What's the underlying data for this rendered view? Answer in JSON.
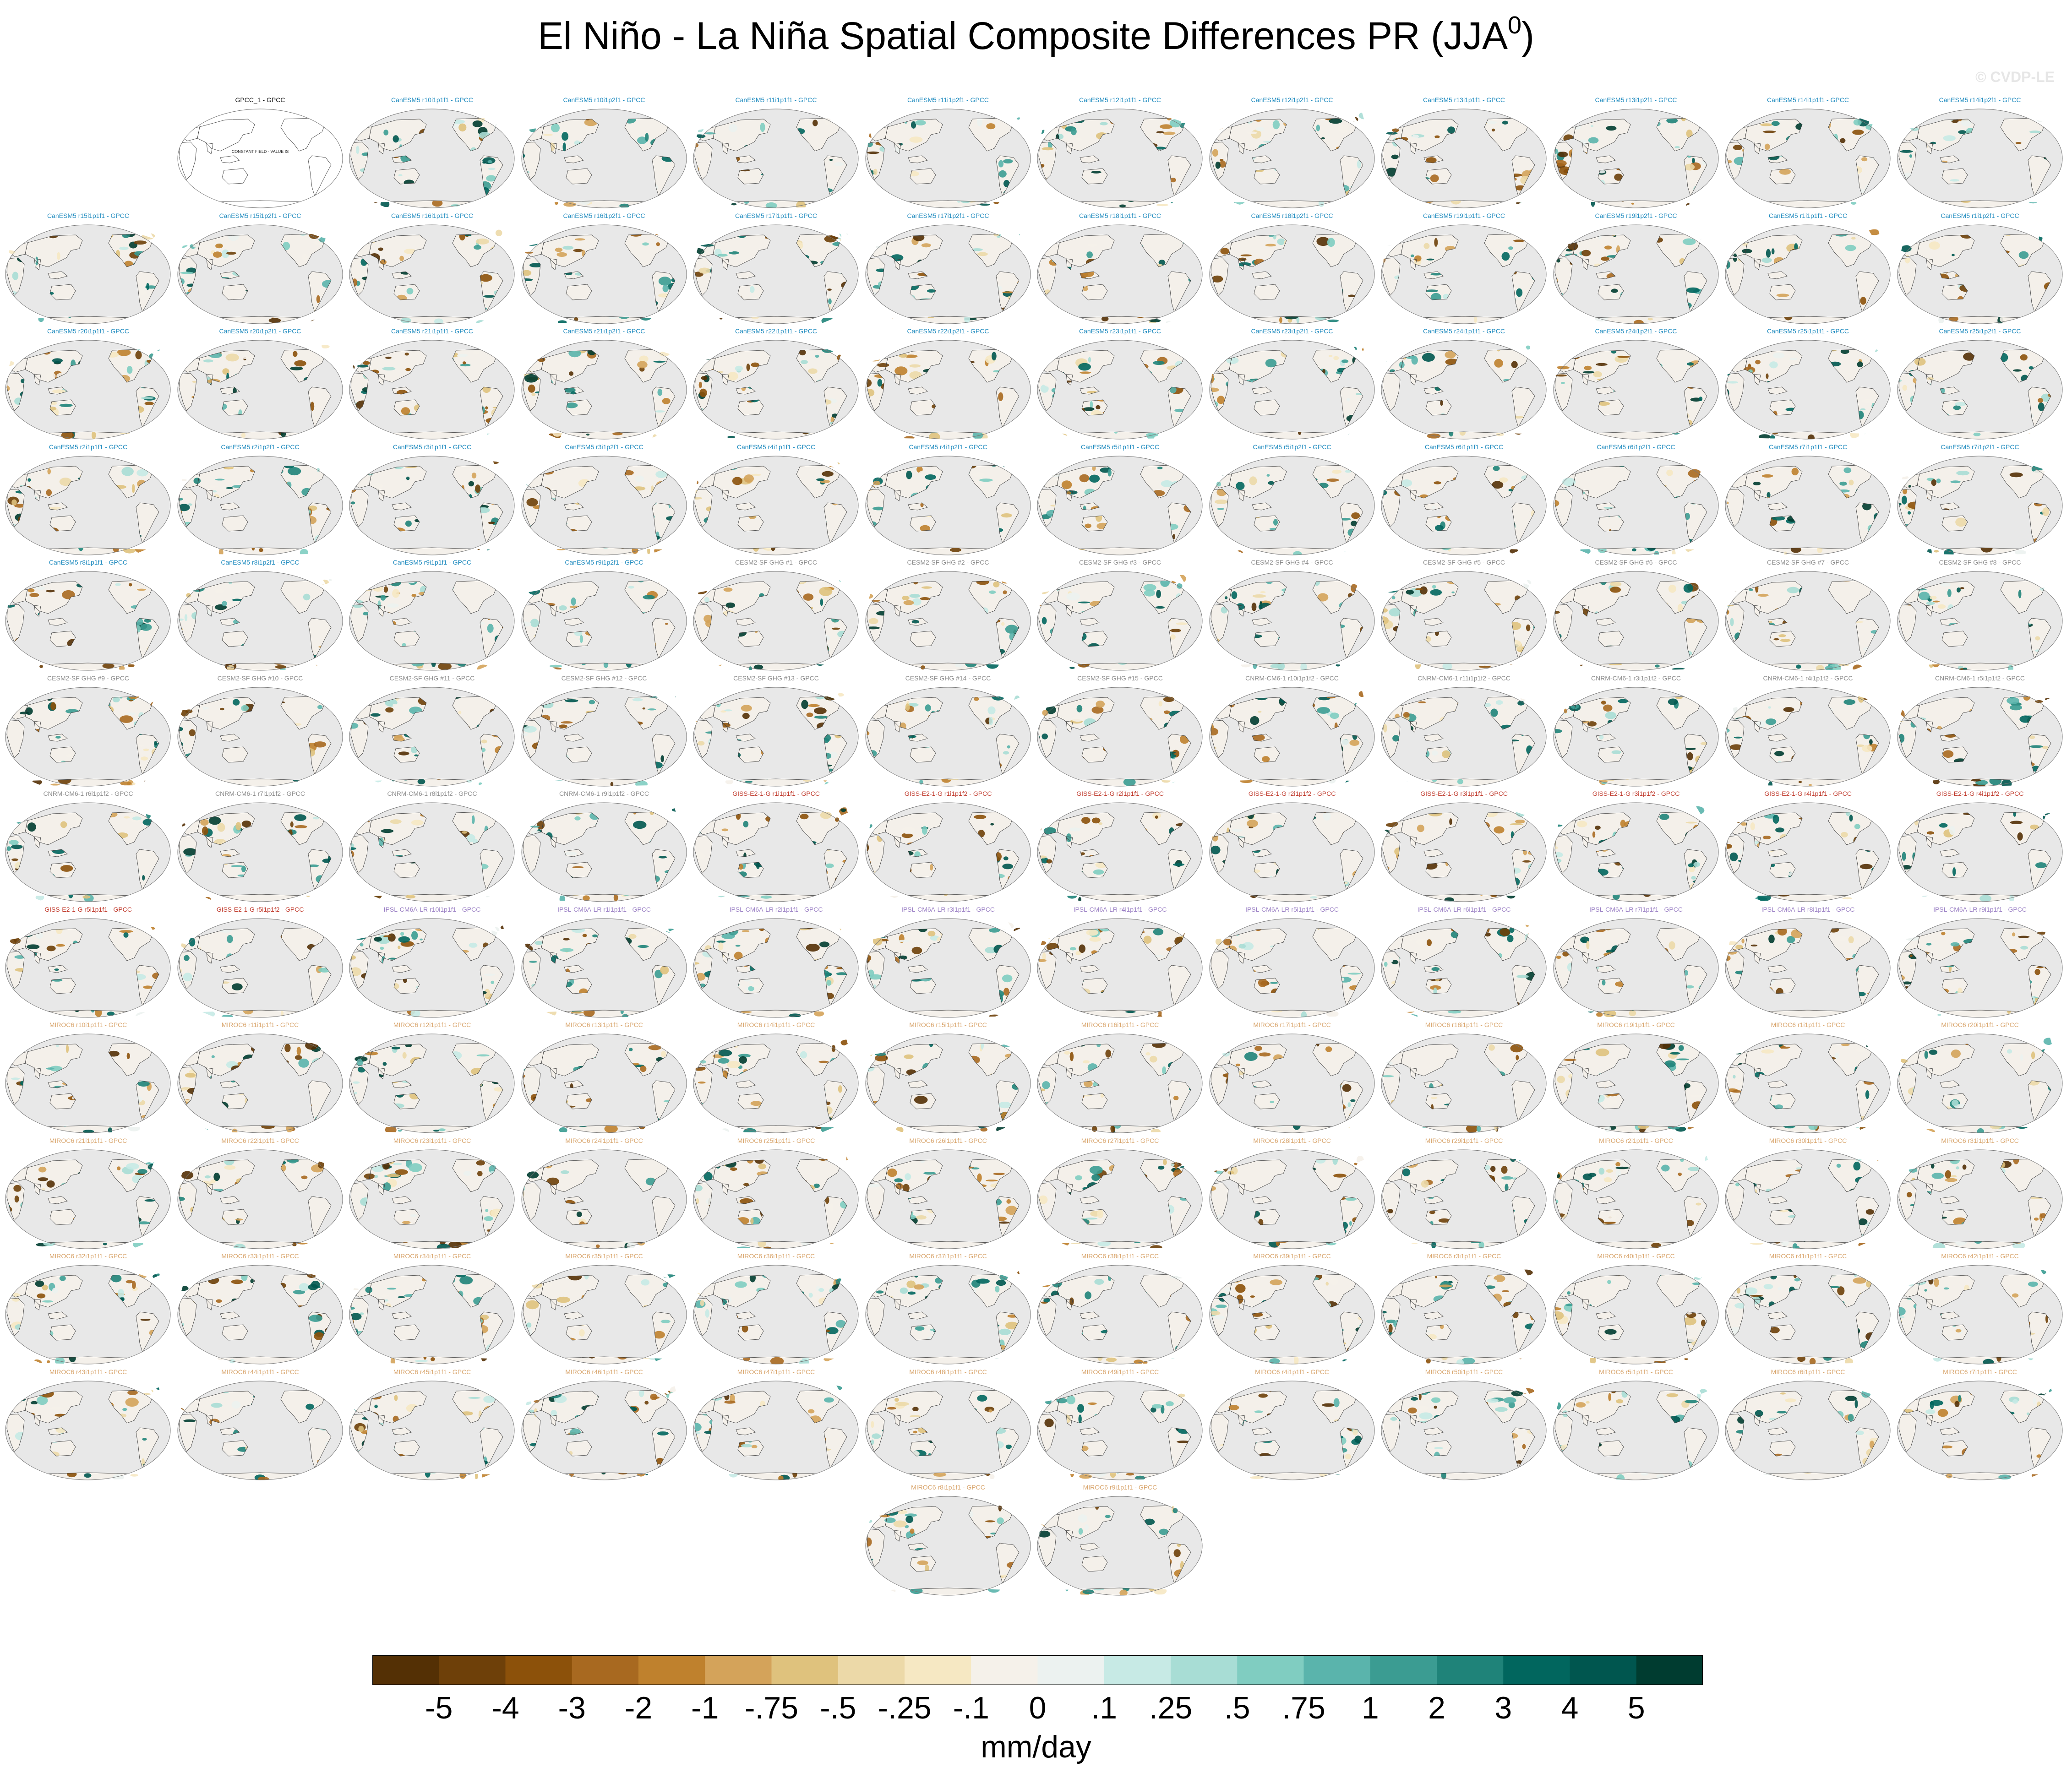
{
  "figure": {
    "title_main": "El Niño - La Niña Spatial Composite Differences PR (JJA",
    "title_sup": "0",
    "title_end": ")",
    "watermark": "© CVDP-LE",
    "obs_note": "CONSTANT FIELD - VALUE IS"
  },
  "colors": {
    "ocean": "#e8e8e8",
    "land_neutral": "#f4f0ea",
    "outline": "#3a3a3a",
    "title_obs": "#111111",
    "title_CanESM5": "#1f8bbf",
    "title_CESM2": "#8c8c8c",
    "title_CNRM": "#8c8c8c",
    "title_GISS": "#c0392b",
    "title_IPSL": "#9a7fc4",
    "title_MIROC6": "#d9a66e"
  },
  "colorbar": {
    "units": "mm/day",
    "colors": [
      "#543005",
      "#6e4009",
      "#8c510a",
      "#a86920",
      "#bf812d",
      "#d4a35a",
      "#dfc27d",
      "#ecd9a8",
      "#f6e8c3",
      "#f5f1ea",
      "#ecf2f0",
      "#c7eae5",
      "#a8ddd5",
      "#80cdc1",
      "#5ab4ac",
      "#3b9c92",
      "#1f8379",
      "#01665e",
      "#00564f",
      "#003c30"
    ],
    "labels": [
      "-5",
      "-4",
      "-3",
      "-2",
      "-1",
      "-.75",
      "-.5",
      "-.25",
      "-.1",
      "0",
      ".1",
      ".25",
      ".5",
      ".75",
      "1",
      "2",
      "3",
      "4",
      "5"
    ]
  },
  "panels": [
    {
      "title": "GPCC_1 - GPCC",
      "group": "obs"
    },
    {
      "title": "CanESM5 r10i1p1f1 - GPCC",
      "group": "CanESM5"
    },
    {
      "title": "CanESM5 r10i1p2f1 - GPCC",
      "group": "CanESM5"
    },
    {
      "title": "CanESM5 r11i1p1f1 - GPCC",
      "group": "CanESM5"
    },
    {
      "title": "CanESM5 r11i1p2f1 - GPCC",
      "group": "CanESM5"
    },
    {
      "title": "CanESM5 r12i1p1f1 - GPCC",
      "group": "CanESM5"
    },
    {
      "title": "CanESM5 r12i1p2f1 - GPCC",
      "group": "CanESM5"
    },
    {
      "title": "CanESM5 r13i1p1f1 - GPCC",
      "group": "CanESM5"
    },
    {
      "title": "CanESM5 r13i1p2f1 - GPCC",
      "group": "CanESM5"
    },
    {
      "title": "CanESM5 r14i1p1f1 - GPCC",
      "group": "CanESM5"
    },
    {
      "title": "CanESM5 r14i1p2f1 - GPCC",
      "group": "CanESM5"
    },
    {
      "title": "CanESM5 r15i1p1f1 - GPCC",
      "group": "CanESM5"
    },
    {
      "title": "CanESM5 r15i1p2f1 - GPCC",
      "group": "CanESM5"
    },
    {
      "title": "CanESM5 r16i1p1f1 - GPCC",
      "group": "CanESM5"
    },
    {
      "title": "CanESM5 r16i1p2f1 - GPCC",
      "group": "CanESM5"
    },
    {
      "title": "CanESM5 r17i1p1f1 - GPCC",
      "group": "CanESM5"
    },
    {
      "title": "CanESM5 r17i1p2f1 - GPCC",
      "group": "CanESM5"
    },
    {
      "title": "CanESM5 r18i1p1f1 - GPCC",
      "group": "CanESM5"
    },
    {
      "title": "CanESM5 r18i1p2f1 - GPCC",
      "group": "CanESM5"
    },
    {
      "title": "CanESM5 r19i1p1f1 - GPCC",
      "group": "CanESM5"
    },
    {
      "title": "CanESM5 r19i1p2f1 - GPCC",
      "group": "CanESM5"
    },
    {
      "title": "CanESM5 r1i1p1f1 - GPCC",
      "group": "CanESM5"
    },
    {
      "title": "CanESM5 r1i1p2f1 - GPCC",
      "group": "CanESM5"
    },
    {
      "title": "CanESM5 r20i1p1f1 - GPCC",
      "group": "CanESM5"
    },
    {
      "title": "CanESM5 r20i1p2f1 - GPCC",
      "group": "CanESM5"
    },
    {
      "title": "CanESM5 r21i1p1f1 - GPCC",
      "group": "CanESM5"
    },
    {
      "title": "CanESM5 r21i1p2f1 - GPCC",
      "group": "CanESM5"
    },
    {
      "title": "CanESM5 r22i1p1f1 - GPCC",
      "group": "CanESM5"
    },
    {
      "title": "CanESM5 r22i1p2f1 - GPCC",
      "group": "CanESM5"
    },
    {
      "title": "CanESM5 r23i1p1f1 - GPCC",
      "group": "CanESM5"
    },
    {
      "title": "CanESM5 r23i1p2f1 - GPCC",
      "group": "CanESM5"
    },
    {
      "title": "CanESM5 r24i1p1f1 - GPCC",
      "group": "CanESM5"
    },
    {
      "title": "CanESM5 r24i1p2f1 - GPCC",
      "group": "CanESM5"
    },
    {
      "title": "CanESM5 r25i1p1f1 - GPCC",
      "group": "CanESM5"
    },
    {
      "title": "CanESM5 r25i1p2f1 - GPCC",
      "group": "CanESM5"
    },
    {
      "title": "CanESM5 r2i1p1f1 - GPCC",
      "group": "CanESM5"
    },
    {
      "title": "CanESM5 r2i1p2f1 - GPCC",
      "group": "CanESM5"
    },
    {
      "title": "CanESM5 r3i1p1f1 - GPCC",
      "group": "CanESM5"
    },
    {
      "title": "CanESM5 r3i1p2f1 - GPCC",
      "group": "CanESM5"
    },
    {
      "title": "CanESM5 r4i1p1f1 - GPCC",
      "group": "CanESM5"
    },
    {
      "title": "CanESM5 r4i1p2f1 - GPCC",
      "group": "CanESM5"
    },
    {
      "title": "CanESM5 r5i1p1f1 - GPCC",
      "group": "CanESM5"
    },
    {
      "title": "CanESM5 r5i1p2f1 - GPCC",
      "group": "CanESM5"
    },
    {
      "title": "CanESM5 r6i1p1f1 - GPCC",
      "group": "CanESM5"
    },
    {
      "title": "CanESM5 r6i1p2f1 - GPCC",
      "group": "CanESM5"
    },
    {
      "title": "CanESM5 r7i1p1f1 - GPCC",
      "group": "CanESM5"
    },
    {
      "title": "CanESM5 r7i1p2f1 - GPCC",
      "group": "CanESM5"
    },
    {
      "title": "CanESM5 r8i1p1f1 - GPCC",
      "group": "CanESM5"
    },
    {
      "title": "CanESM5 r8i1p2f1 - GPCC",
      "group": "CanESM5"
    },
    {
      "title": "CanESM5 r9i1p1f1 - GPCC",
      "group": "CanESM5"
    },
    {
      "title": "CanESM5 r9i1p2f1 - GPCC",
      "group": "CanESM5"
    },
    {
      "title": "CESM2-SF GHG #1 - GPCC",
      "group": "CESM2"
    },
    {
      "title": "CESM2-SF GHG #2 - GPCC",
      "group": "CESM2"
    },
    {
      "title": "CESM2-SF GHG #3 - GPCC",
      "group": "CESM2"
    },
    {
      "title": "CESM2-SF GHG #4 - GPCC",
      "group": "CESM2"
    },
    {
      "title": "CESM2-SF GHG #5 - GPCC",
      "group": "CESM2"
    },
    {
      "title": "CESM2-SF GHG #6 - GPCC",
      "group": "CESM2"
    },
    {
      "title": "CESM2-SF GHG #7 - GPCC",
      "group": "CESM2"
    },
    {
      "title": "CESM2-SF GHG #8 - GPCC",
      "group": "CESM2"
    },
    {
      "title": "CESM2-SF GHG #9 - GPCC",
      "group": "CESM2"
    },
    {
      "title": "CESM2-SF GHG #10 - GPCC",
      "group": "CESM2"
    },
    {
      "title": "CESM2-SF GHG #11 - GPCC",
      "group": "CESM2"
    },
    {
      "title": "CESM2-SF GHG #12 - GPCC",
      "group": "CESM2"
    },
    {
      "title": "CESM2-SF GHG #13 - GPCC",
      "group": "CESM2"
    },
    {
      "title": "CESM2-SF GHG #14 - GPCC",
      "group": "CESM2"
    },
    {
      "title": "CESM2-SF GHG #15 - GPCC",
      "group": "CESM2"
    },
    {
      "title": "CNRM-CM6-1 r10i1p1f2 - GPCC",
      "group": "CNRM"
    },
    {
      "title": "CNRM-CM6-1 r11i1p1f2 - GPCC",
      "group": "CNRM"
    },
    {
      "title": "CNRM-CM6-1 r3i1p1f2 - GPCC",
      "group": "CNRM"
    },
    {
      "title": "CNRM-CM6-1 r4i1p1f2 - GPCC",
      "group": "CNRM"
    },
    {
      "title": "CNRM-CM6-1 r5i1p1f2 - GPCC",
      "group": "CNRM"
    },
    {
      "title": "CNRM-CM6-1 r6i1p1f2 - GPCC",
      "group": "CNRM"
    },
    {
      "title": "CNRM-CM6-1 r7i1p1f2 - GPCC",
      "group": "CNRM"
    },
    {
      "title": "CNRM-CM6-1 r8i1p1f2 - GPCC",
      "group": "CNRM"
    },
    {
      "title": "CNRM-CM6-1 r9i1p1f2 - GPCC",
      "group": "CNRM"
    },
    {
      "title": "GISS-E2-1-G r1i1p1f1 - GPCC",
      "group": "GISS"
    },
    {
      "title": "GISS-E2-1-G r1i1p1f2 - GPCC",
      "group": "GISS"
    },
    {
      "title": "GISS-E2-1-G r2i1p1f1 - GPCC",
      "group": "GISS"
    },
    {
      "title": "GISS-E2-1-G r2i1p1f2 - GPCC",
      "group": "GISS"
    },
    {
      "title": "GISS-E2-1-G r3i1p1f1 - GPCC",
      "group": "GISS"
    },
    {
      "title": "GISS-E2-1-G r3i1p1f2 - GPCC",
      "group": "GISS"
    },
    {
      "title": "GISS-E2-1-G r4i1p1f1 - GPCC",
      "group": "GISS"
    },
    {
      "title": "GISS-E2-1-G r4i1p1f2 - GPCC",
      "group": "GISS"
    },
    {
      "title": "GISS-E2-1-G r5i1p1f1 - GPCC",
      "group": "GISS"
    },
    {
      "title": "GISS-E2-1-G r5i1p1f2 - GPCC",
      "group": "GISS"
    },
    {
      "title": "IPSL-CM6A-LR r10i1p1f1 - GPCC",
      "group": "IPSL"
    },
    {
      "title": "IPSL-CM6A-LR r1i1p1f1 - GPCC",
      "group": "IPSL"
    },
    {
      "title": "IPSL-CM6A-LR r2i1p1f1 - GPCC",
      "group": "IPSL"
    },
    {
      "title": "IPSL-CM6A-LR r3i1p1f1 - GPCC",
      "group": "IPSL"
    },
    {
      "title": "IPSL-CM6A-LR r4i1p1f1 - GPCC",
      "group": "IPSL"
    },
    {
      "title": "IPSL-CM6A-LR r5i1p1f1 - GPCC",
      "group": "IPSL"
    },
    {
      "title": "IPSL-CM6A-LR r6i1p1f1 - GPCC",
      "group": "IPSL"
    },
    {
      "title": "IPSL-CM6A-LR r7i1p1f1 - GPCC",
      "group": "IPSL"
    },
    {
      "title": "IPSL-CM6A-LR r8i1p1f1 - GPCC",
      "group": "IPSL"
    },
    {
      "title": "IPSL-CM6A-LR r9i1p1f1 - GPCC",
      "group": "IPSL"
    },
    {
      "title": "MIROC6 r10i1p1f1 - GPCC",
      "group": "MIROC6"
    },
    {
      "title": "MIROC6 r11i1p1f1 - GPCC",
      "group": "MIROC6"
    },
    {
      "title": "MIROC6 r12i1p1f1 - GPCC",
      "group": "MIROC6"
    },
    {
      "title": "MIROC6 r13i1p1f1 - GPCC",
      "group": "MIROC6"
    },
    {
      "title": "MIROC6 r14i1p1f1 - GPCC",
      "group": "MIROC6"
    },
    {
      "title": "MIROC6 r15i1p1f1 - GPCC",
      "group": "MIROC6"
    },
    {
      "title": "MIROC6 r16i1p1f1 - GPCC",
      "group": "MIROC6"
    },
    {
      "title": "MIROC6 r17i1p1f1 - GPCC",
      "group": "MIROC6"
    },
    {
      "title": "MIROC6 r18i1p1f1 - GPCC",
      "group": "MIROC6"
    },
    {
      "title": "MIROC6 r19i1p1f1 - GPCC",
      "group": "MIROC6"
    },
    {
      "title": "MIROC6 r1i1p1f1 - GPCC",
      "group": "MIROC6"
    },
    {
      "title": "MIROC6 r20i1p1f1 - GPCC",
      "group": "MIROC6"
    },
    {
      "title": "MIROC6 r21i1p1f1 - GPCC",
      "group": "MIROC6"
    },
    {
      "title": "MIROC6 r22i1p1f1 - GPCC",
      "group": "MIROC6"
    },
    {
      "title": "MIROC6 r23i1p1f1 - GPCC",
      "group": "MIROC6"
    },
    {
      "title": "MIROC6 r24i1p1f1 - GPCC",
      "group": "MIROC6"
    },
    {
      "title": "MIROC6 r25i1p1f1 - GPCC",
      "group": "MIROC6"
    },
    {
      "title": "MIROC6 r26i1p1f1 - GPCC",
      "group": "MIROC6"
    },
    {
      "title": "MIROC6 r27i1p1f1 - GPCC",
      "group": "MIROC6"
    },
    {
      "title": "MIROC6 r28i1p1f1 - GPCC",
      "group": "MIROC6"
    },
    {
      "title": "MIROC6 r29i1p1f1 - GPCC",
      "group": "MIROC6"
    },
    {
      "title": "MIROC6 r2i1p1f1 - GPCC",
      "group": "MIROC6"
    },
    {
      "title": "MIROC6 r30i1p1f1 - GPCC",
      "group": "MIROC6"
    },
    {
      "title": "MIROC6 r31i1p1f1 - GPCC",
      "group": "MIROC6"
    },
    {
      "title": "MIROC6 r32i1p1f1 - GPCC",
      "group": "MIROC6"
    },
    {
      "title": "MIROC6 r33i1p1f1 - GPCC",
      "group": "MIROC6"
    },
    {
      "title": "MIROC6 r34i1p1f1 - GPCC",
      "group": "MIROC6"
    },
    {
      "title": "MIROC6 r35i1p1f1 - GPCC",
      "group": "MIROC6"
    },
    {
      "title": "MIROC6 r36i1p1f1 - GPCC",
      "group": "MIROC6"
    },
    {
      "title": "MIROC6 r37i1p1f1 - GPCC",
      "group": "MIROC6"
    },
    {
      "title": "MIROC6 r38i1p1f1 - GPCC",
      "group": "MIROC6"
    },
    {
      "title": "MIROC6 r39i1p1f1 - GPCC",
      "group": "MIROC6"
    },
    {
      "title": "MIROC6 r3i1p1f1 - GPCC",
      "group": "MIROC6"
    },
    {
      "title": "MIROC6 r40i1p1f1 - GPCC",
      "group": "MIROC6"
    },
    {
      "title": "MIROC6 r41i1p1f1 - GPCC",
      "group": "MIROC6"
    },
    {
      "title": "MIROC6 r42i1p1f1 - GPCC",
      "group": "MIROC6"
    },
    {
      "title": "MIROC6 r43i1p1f1 - GPCC",
      "group": "MIROC6"
    },
    {
      "title": "MIROC6 r44i1p1f1 - GPCC",
      "group": "MIROC6"
    },
    {
      "title": "MIROC6 r45i1p1f1 - GPCC",
      "group": "MIROC6"
    },
    {
      "title": "MIROC6 r46i1p1f1 - GPCC",
      "group": "MIROC6"
    },
    {
      "title": "MIROC6 r47i1p1f1 - GPCC",
      "group": "MIROC6"
    },
    {
      "title": "MIROC6 r48i1p1f1 - GPCC",
      "group": "MIROC6"
    },
    {
      "title": "MIROC6 r49i1p1f1 - GPCC",
      "group": "MIROC6"
    },
    {
      "title": "MIROC6 r4i1p1f1 - GPCC",
      "group": "MIROC6"
    },
    {
      "title": "MIROC6 r50i1p1f1 - GPCC",
      "group": "MIROC6"
    },
    {
      "title": "MIROC6 r5i1p1f1 - GPCC",
      "group": "MIROC6"
    },
    {
      "title": "MIROC6 r6i1p1f1 - GPCC",
      "group": "MIROC6"
    },
    {
      "title": "MIROC6 r7i1p1f1 - GPCC",
      "group": "MIROC6"
    },
    {
      "title": "MIROC6 r8i1p1f1 - GPCC",
      "group": "MIROC6"
    },
    {
      "title": "MIROC6 r9i1p1f1 - GPCC",
      "group": "MIROC6"
    }
  ]
}
